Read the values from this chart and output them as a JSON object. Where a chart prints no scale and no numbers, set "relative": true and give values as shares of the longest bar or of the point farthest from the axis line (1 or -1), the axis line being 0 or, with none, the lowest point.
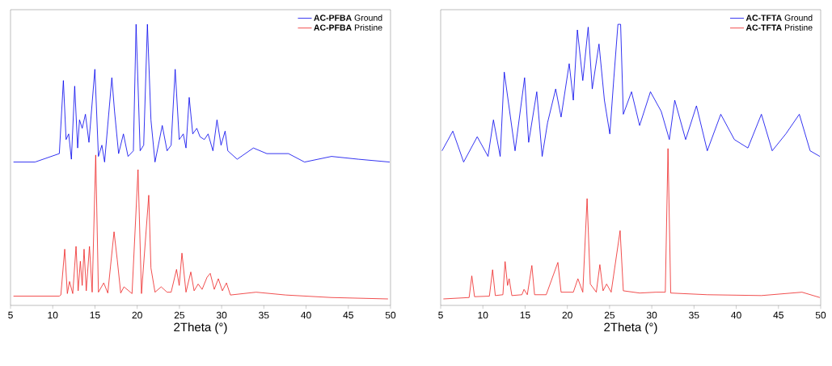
{
  "chart_data": [
    {
      "type": "line",
      "relative": true,
      "xlabel": "2Theta (°)",
      "xlim": [
        5,
        50
      ],
      "xticks": [
        5,
        10,
        15,
        20,
        25,
        30,
        35,
        40,
        45,
        50
      ],
      "tick_labels": "x",
      "legend": "top right",
      "grid": false,
      "marker": "none",
      "series": [
        {
          "name": "**AC-PFBA** Ground",
          "color": "#0000ee",
          "x": [
            5.35,
            7.9,
            10.78,
            11.26,
            11.58,
            11.89,
            12.21,
            12.6,
            12.95,
            13.17,
            13.49,
            13.87,
            14.29,
            14.99,
            15.41,
            15.82,
            16.14,
            17.0,
            17.32,
            17.8,
            18.37,
            18.92,
            19.55,
            19.87,
            20.35,
            20.77,
            21.21,
            21.63,
            22.11,
            22.97,
            23.54,
            24.02,
            24.5,
            24.98,
            25.46,
            25.78,
            26.16,
            26.58,
            27.06,
            27.44,
            27.95,
            28.4,
            28.97,
            29.45,
            29.93,
            30.41,
            30.73,
            31.84,
            33.76,
            35.35,
            37.91,
            39.82,
            43.01,
            46.2,
            49.9
          ],
          "values": [
            0.51,
            0.51,
            0.54,
            0.8,
            0.59,
            0.61,
            0.52,
            0.78,
            0.56,
            0.66,
            0.63,
            0.68,
            0.58,
            0.84,
            0.53,
            0.57,
            0.51,
            0.81,
            0.69,
            0.54,
            0.61,
            0.53,
            0.55,
            1.0,
            0.55,
            0.57,
            1.0,
            0.66,
            0.51,
            0.64,
            0.55,
            0.57,
            0.84,
            0.59,
            0.61,
            0.56,
            0.74,
            0.61,
            0.63,
            0.6,
            0.59,
            0.61,
            0.55,
            0.66,
            0.57,
            0.62,
            0.55,
            0.52,
            0.56,
            0.54,
            0.54,
            0.51,
            0.53,
            0.52,
            0.51
          ]
        },
        {
          "name": "**AC-PFBA** Pristine",
          "color": "#ee2222",
          "x": [
            5.35,
            10.78,
            10.96,
            11.42,
            11.73,
            11.99,
            12.37,
            12.76,
            13.01,
            13.27,
            13.49,
            13.71,
            13.97,
            14.35,
            14.67,
            15.09,
            15.41,
            16.04,
            16.52,
            17.26,
            17.64,
            18.05,
            18.44,
            19.39,
            20.1,
            20.51,
            21.37,
            21.63,
            22.11,
            22.84,
            23.54,
            24.02,
            24.66,
            24.98,
            25.3,
            25.78,
            26.35,
            26.74,
            27.22,
            27.69,
            28.27,
            28.65,
            29.13,
            29.61,
            30.09,
            30.57,
            31.04,
            34.08,
            37.59,
            43.01,
            49.7
          ],
          "values": [
            0.033,
            0.033,
            0.037,
            0.2,
            0.042,
            0.085,
            0.042,
            0.21,
            0.052,
            0.157,
            0.071,
            0.2,
            0.052,
            0.21,
            0.047,
            0.535,
            0.047,
            0.08,
            0.044,
            0.262,
            0.162,
            0.044,
            0.066,
            0.042,
            0.483,
            0.042,
            0.392,
            0.133,
            0.047,
            0.066,
            0.047,
            0.047,
            0.128,
            0.071,
            0.186,
            0.047,
            0.119,
            0.052,
            0.076,
            0.057,
            0.1,
            0.114,
            0.057,
            0.095,
            0.052,
            0.08,
            0.037,
            0.047,
            0.037,
            0.028,
            0.023
          ]
        }
      ]
    },
    {
      "type": "line",
      "relative": true,
      "xlabel": "2Theta (°)",
      "xlim": [
        5,
        50
      ],
      "xticks": [
        5,
        10,
        15,
        20,
        25,
        30,
        35,
        40,
        45,
        50
      ],
      "tick_labels": "x",
      "legend": "top right",
      "grid": false,
      "marker": "none",
      "series": [
        {
          "name": "**AC-TFTA** Ground",
          "color": "#0000ee",
          "x": [
            5.16,
            6.44,
            7.72,
            9.33,
            10.61,
            11.25,
            12.05,
            12.53,
            13.17,
            13.81,
            14.94,
            15.42,
            16.38,
            17.02,
            17.66,
            18.62,
            19.26,
            20.22,
            20.71,
            21.19,
            21.83,
            22.47,
            22.95,
            23.75,
            24.39,
            25.03,
            25.51,
            25.99,
            26.31,
            26.63,
            27.6,
            28.56,
            29.84,
            31.12,
            32.08,
            32.72,
            34.01,
            35.29,
            36.57,
            38.17,
            39.78,
            41.38,
            42.98,
            44.26,
            45.87,
            47.47,
            48.75,
            49.9
          ],
          "values": [
            0.55,
            0.62,
            0.51,
            0.6,
            0.53,
            0.66,
            0.53,
            0.83,
            0.69,
            0.55,
            0.81,
            0.58,
            0.76,
            0.53,
            0.65,
            0.77,
            0.67,
            0.86,
            0.73,
            0.98,
            0.8,
            0.99,
            0.77,
            0.93,
            0.73,
            0.61,
            0.81,
            1.0,
            1.0,
            0.68,
            0.76,
            0.64,
            0.76,
            0.69,
            0.59,
            0.73,
            0.59,
            0.71,
            0.55,
            0.68,
            0.59,
            0.56,
            0.68,
            0.55,
            0.61,
            0.68,
            0.55,
            0.53
          ]
        },
        {
          "name": "**AC-TFTA** Pristine",
          "color": "#ee2222",
          "x": [
            5.32,
            8.37,
            8.69,
            9.01,
            10.77,
            11.15,
            11.47,
            12.37,
            12.63,
            12.92,
            13.11,
            13.43,
            14.62,
            14.87,
            15.26,
            15.8,
            16.12,
            17.5,
            18.88,
            19.26,
            20.71,
            21.25,
            21.83,
            22.34,
            22.72,
            23.43,
            23.85,
            24.23,
            24.65,
            25.19,
            26.25,
            26.63,
            28.56,
            30.48,
            31.6,
            31.92,
            32.24,
            36.57,
            42.98,
            47.79,
            49.9
          ],
          "values": [
            0.023,
            0.028,
            0.105,
            0.031,
            0.033,
            0.127,
            0.035,
            0.038,
            0.156,
            0.071,
            0.095,
            0.035,
            0.038,
            0.057,
            0.038,
            0.142,
            0.038,
            0.038,
            0.153,
            0.047,
            0.047,
            0.095,
            0.047,
            0.38,
            0.076,
            0.047,
            0.145,
            0.052,
            0.076,
            0.047,
            0.266,
            0.052,
            0.044,
            0.047,
            0.047,
            0.558,
            0.044,
            0.038,
            0.035,
            0.047,
            0.028
          ]
        }
      ]
    }
  ]
}
